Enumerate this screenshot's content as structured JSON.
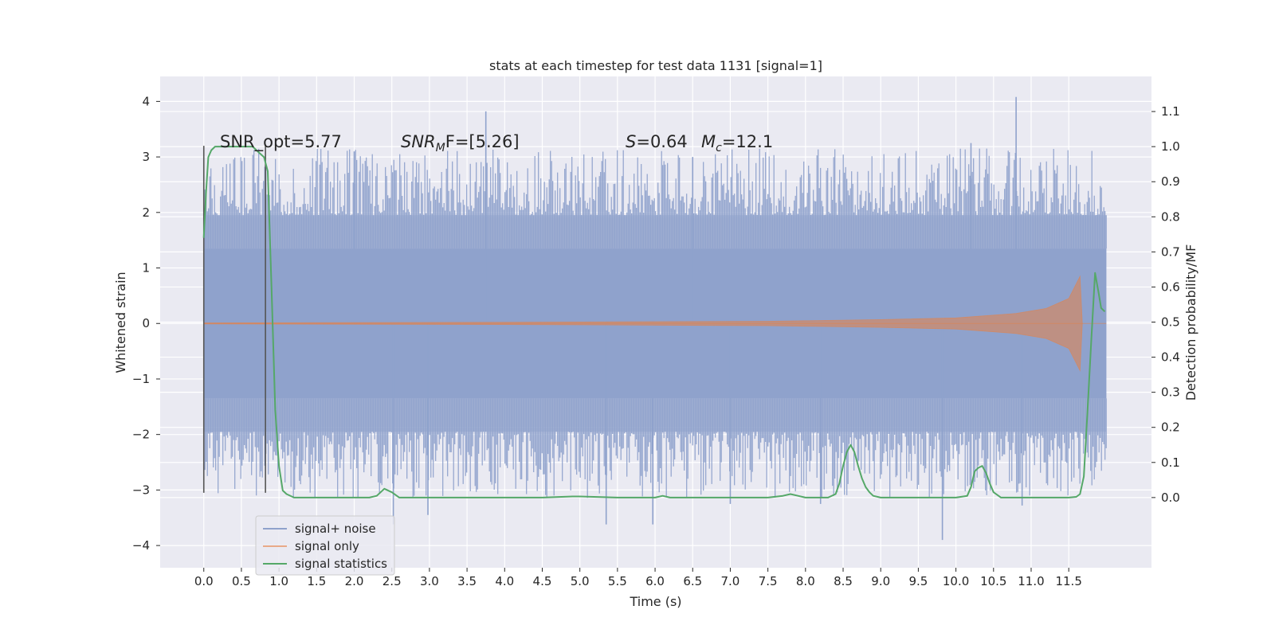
{
  "chart_data": {
    "type": "line",
    "title": "stats at each timestep for test data 1131 [signal=1]",
    "xlabel": "Time (s)",
    "ylabel": "Whitened strain",
    "ylabel_right": "Detection probability/MF",
    "xlim": [
      -0.58,
      12.6
    ],
    "ylim": [
      -4.4,
      4.45
    ],
    "ylim_right": [
      -0.2,
      1.2
    ],
    "x_ticks": [
      "0.0",
      "0.5",
      "1.0",
      "1.5",
      "2.0",
      "2.5",
      "3.0",
      "3.5",
      "4.0",
      "4.5",
      "5.0",
      "5.5",
      "6.0",
      "6.5",
      "7.0",
      "7.5",
      "8.0",
      "8.5",
      "9.0",
      "9.5",
      "10.0",
      "10.5",
      "11.0",
      "11.5"
    ],
    "y_ticks": [
      "4",
      "3",
      "2",
      "1",
      "0",
      "−1",
      "−2",
      "−3",
      "−4"
    ],
    "y_ticks_right": [
      "1.1",
      "1.0",
      "0.9",
      "0.8",
      "0.7",
      "0.6",
      "0.5",
      "0.4",
      "0.3",
      "0.2",
      "0.1",
      "0.0"
    ],
    "grid": true,
    "legend_placement": "lower-left",
    "annotations": {
      "snr_opt": "SNR_opt=5.77",
      "snr_mf_sym": "SNR",
      "snr_mf_sub": "M",
      "snr_mf_rest": "F=[5.26]",
      "s_sym": "S",
      "s_val": "=0.64",
      "mc_sym": "M",
      "mc_sub": "c",
      "mc_val": "=12.1"
    },
    "markers": [
      {
        "x": 0.0,
        "y_range": [
          -3.05,
          3.2
        ]
      },
      {
        "x": 0.82,
        "y_range": [
          -3.05,
          3.2
        ]
      }
    ],
    "series": [
      {
        "name": "signal+ noise",
        "color": "#8fa2cc",
        "axis": "left",
        "duration": 12.0,
        "band_level": 1.35,
        "outer_level": 1.95,
        "spikes": [
          {
            "x": 3.75,
            "y": 3.82
          },
          {
            "x": 10.8,
            "y": 4.08
          },
          {
            "x": 10.2,
            "y": 3.25
          },
          {
            "x": 6.5,
            "y": 3.0
          },
          {
            "x": 2.0,
            "y": 3.1
          },
          {
            "x": 9.82,
            "y": -3.9
          },
          {
            "x": 5.35,
            "y": -3.62
          },
          {
            "x": 5.97,
            "y": -3.62
          },
          {
            "x": 2.52,
            "y": -3.62
          },
          {
            "x": 2.98,
            "y": -3.45
          },
          {
            "x": 7.0,
            "y": -3.25
          },
          {
            "x": 10.88,
            "y": -3.28
          },
          {
            "x": 8.2,
            "y": -3.25
          }
        ]
      },
      {
        "name": "signal only",
        "color": "#dd8452",
        "axis": "left",
        "envelope": [
          [
            0.0,
            0.01
          ],
          [
            4.0,
            0.02
          ],
          [
            7.5,
            0.04
          ],
          [
            9.0,
            0.07
          ],
          [
            10.0,
            0.1
          ],
          [
            10.8,
            0.18
          ],
          [
            11.2,
            0.27
          ],
          [
            11.5,
            0.45
          ],
          [
            11.65,
            0.85
          ],
          [
            11.68,
            0.0
          ]
        ]
      },
      {
        "name": "signal statistics",
        "color": "#55a868",
        "axis": "right",
        "x": [
          0.0,
          0.03,
          0.06,
          0.1,
          0.15,
          0.2,
          0.3,
          0.4,
          0.5,
          0.6,
          0.65,
          0.7,
          0.75,
          0.8,
          0.85,
          0.9,
          0.95,
          1.0,
          1.05,
          1.1,
          1.2,
          1.5,
          2.0,
          2.2,
          2.3,
          2.4,
          2.5,
          2.6,
          2.8,
          3.0,
          3.5,
          4.0,
          4.5,
          4.9,
          5.0,
          5.5,
          5.8,
          6.0,
          6.1,
          6.2,
          6.5,
          7.0,
          7.5,
          7.7,
          7.8,
          7.9,
          8.0,
          8.3,
          8.4,
          8.45,
          8.5,
          8.55,
          8.6,
          8.65,
          8.7,
          8.75,
          8.8,
          8.85,
          8.9,
          9.0,
          9.1,
          9.5,
          10.0,
          10.15,
          10.2,
          10.25,
          10.3,
          10.35,
          10.4,
          10.45,
          10.5,
          10.6,
          11.0,
          11.5,
          11.6,
          11.65,
          11.7,
          11.75,
          11.8,
          11.85,
          11.9,
          11.93,
          11.98
        ],
        "y": [
          0.74,
          0.87,
          0.97,
          0.99,
          1.0,
          1.0,
          1.0,
          1.0,
          1.0,
          1.0,
          1.0,
          0.99,
          0.98,
          0.97,
          0.93,
          0.6,
          0.25,
          0.09,
          0.02,
          0.01,
          0.0,
          0.0,
          0.0,
          0.0,
          0.005,
          0.025,
          0.015,
          0.0,
          0.0,
          0.0,
          0.0,
          0.0,
          0.0,
          0.003,
          0.003,
          0.0,
          0.0,
          0.0,
          0.005,
          0.0,
          0.0,
          0.0,
          0.0,
          0.005,
          0.01,
          0.005,
          0.0,
          0.0,
          0.01,
          0.04,
          0.09,
          0.13,
          0.15,
          0.13,
          0.09,
          0.055,
          0.03,
          0.015,
          0.005,
          0.0,
          0.0,
          0.0,
          0.0,
          0.005,
          0.03,
          0.075,
          0.085,
          0.09,
          0.07,
          0.04,
          0.015,
          0.0,
          0.0,
          0.0,
          0.002,
          0.01,
          0.06,
          0.25,
          0.45,
          0.64,
          0.58,
          0.54,
          0.53
        ]
      }
    ]
  }
}
